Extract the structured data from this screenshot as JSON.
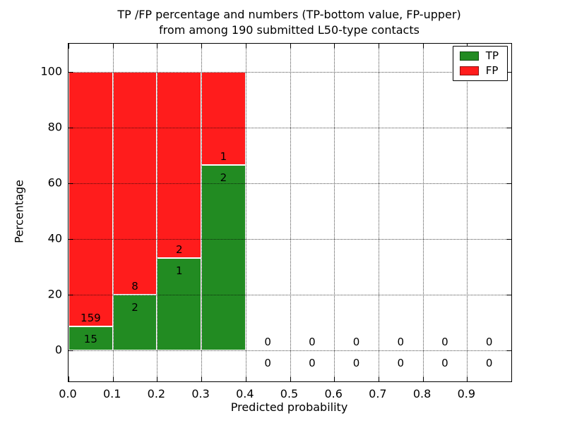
{
  "figure": {
    "title_line1": "TP /FP percentage and numbers (TP-bottom value, FP-upper)",
    "title_line2": "from among 190 submitted L50-type contacts",
    "xlabel": "Predicted probability",
    "ylabel": "Percentage"
  },
  "legend": {
    "items": [
      {
        "label": "TP",
        "color": "#228b22"
      },
      {
        "label": "FP",
        "color": "#ff1c1c"
      }
    ]
  },
  "chart_data": {
    "type": "bar",
    "stacked": true,
    "title": "TP /FP percentage and numbers (TP-bottom value, FP-upper) from among 190 submitted L50-type contacts",
    "xlabel": "Predicted probability",
    "ylabel": "Percentage",
    "total_submitted_contacts": 190,
    "xlim": [
      0.0,
      1.0
    ],
    "ylim": [
      -11,
      110
    ],
    "xtick_labels": [
      "0.0",
      "0.1",
      "0.2",
      "0.3",
      "0.4",
      "0.5",
      "0.6",
      "0.7",
      "0.8",
      "0.9"
    ],
    "xtick_values": [
      0.0,
      0.1,
      0.2,
      0.3,
      0.4,
      0.5,
      0.6,
      0.7,
      0.8,
      0.9
    ],
    "ytick_values": [
      0,
      20,
      40,
      60,
      80,
      100
    ],
    "grid": "dotted, drawn above bars",
    "legend_position": "upper right",
    "series": [
      {
        "name": "TP",
        "color": "#228b22",
        "counts": [
          15,
          2,
          1,
          2,
          0,
          0,
          0,
          0,
          0,
          0
        ],
        "percentages": [
          8.62,
          20.0,
          33.33,
          66.67,
          0,
          0,
          0,
          0,
          0,
          0
        ]
      },
      {
        "name": "FP",
        "color": "#ff1c1c",
        "counts": [
          159,
          8,
          2,
          1,
          0,
          0,
          0,
          0,
          0,
          0
        ],
        "percentages": [
          91.38,
          80.0,
          66.67,
          33.33,
          0,
          0,
          0,
          0,
          0,
          0
        ]
      }
    ],
    "bins": [
      {
        "x_range": [
          0.0,
          0.1
        ],
        "tp": 15,
        "fp": 159,
        "tp_pct": 8.62,
        "fp_pct": 91.38
      },
      {
        "x_range": [
          0.1,
          0.2
        ],
        "tp": 2,
        "fp": 8,
        "tp_pct": 20.0,
        "fp_pct": 80.0
      },
      {
        "x_range": [
          0.2,
          0.3
        ],
        "tp": 1,
        "fp": 2,
        "tp_pct": 33.33,
        "fp_pct": 66.67
      },
      {
        "x_range": [
          0.3,
          0.4
        ],
        "tp": 2,
        "fp": 1,
        "tp_pct": 66.67,
        "fp_pct": 33.33
      },
      {
        "x_range": [
          0.4,
          0.5
        ],
        "tp": 0,
        "fp": 0,
        "tp_pct": 0,
        "fp_pct": 0
      },
      {
        "x_range": [
          0.5,
          0.6
        ],
        "tp": 0,
        "fp": 0,
        "tp_pct": 0,
        "fp_pct": 0
      },
      {
        "x_range": [
          0.6,
          0.7
        ],
        "tp": 0,
        "fp": 0,
        "tp_pct": 0,
        "fp_pct": 0
      },
      {
        "x_range": [
          0.7,
          0.8
        ],
        "tp": 0,
        "fp": 0,
        "tp_pct": 0,
        "fp_pct": 0
      },
      {
        "x_range": [
          0.8,
          0.9
        ],
        "tp": 0,
        "fp": 0,
        "tp_pct": 0,
        "fp_pct": 0
      },
      {
        "x_range": [
          0.9,
          1.0
        ],
        "tp": 0,
        "fp": 0,
        "tp_pct": 0,
        "fp_pct": 0
      }
    ]
  }
}
